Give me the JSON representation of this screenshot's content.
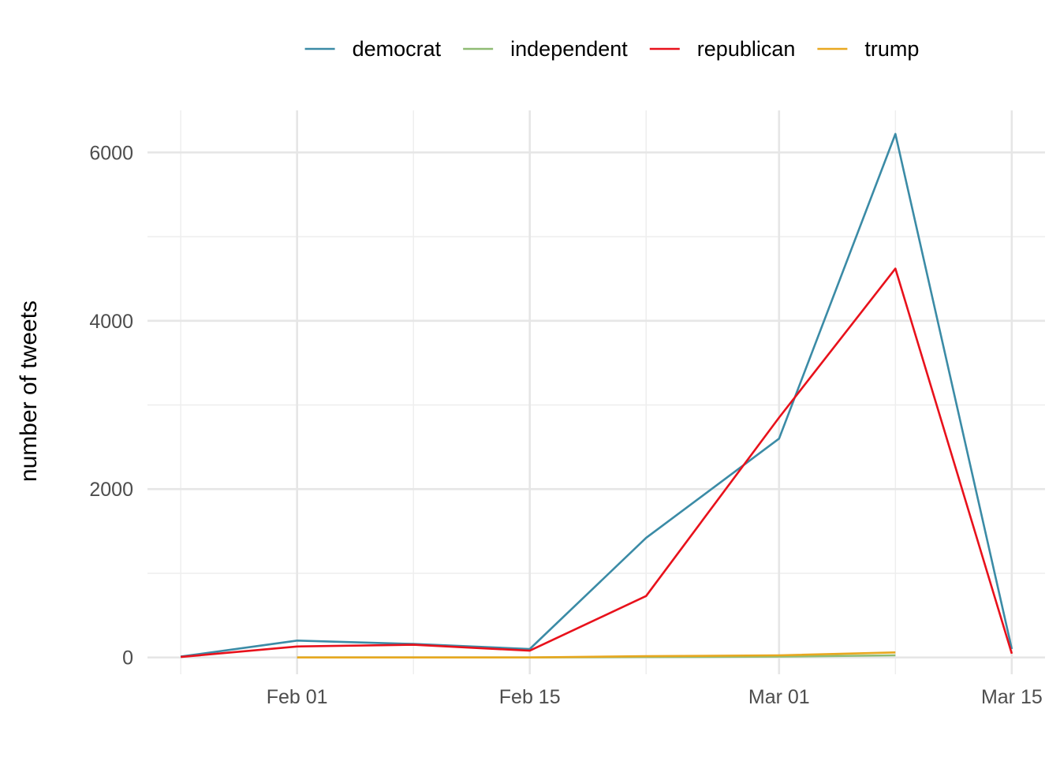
{
  "chart_data": {
    "type": "line",
    "title": "",
    "xlabel": "",
    "ylabel": "number of tweets",
    "x_type": "date",
    "xlim": [
      "2020-01-23",
      "2020-03-17"
    ],
    "ylim": [
      -200,
      6500
    ],
    "x_major_ticks": [
      {
        "date": "2020-02-01",
        "label": "Feb 01"
      },
      {
        "date": "2020-02-15",
        "label": "Feb 15"
      },
      {
        "date": "2020-03-01",
        "label": "Mar 01"
      },
      {
        "date": "2020-03-15",
        "label": "Mar 15"
      }
    ],
    "x_minor_ticks": [
      "2020-01-25",
      "2020-02-08",
      "2020-02-22",
      "2020-03-08"
    ],
    "y_major_ticks": [
      0,
      2000,
      4000,
      6000
    ],
    "y_minor_ticks": [
      1000,
      3000,
      5000
    ],
    "grid": true,
    "legend": {
      "position": "top",
      "direction": "horizontal"
    },
    "series": [
      {
        "name": "democrat",
        "color": "#3B8BA6",
        "points": [
          [
            "2020-01-25",
            10
          ],
          [
            "2020-02-01",
            200
          ],
          [
            "2020-02-08",
            160
          ],
          [
            "2020-02-15",
            100
          ],
          [
            "2020-02-22",
            1420
          ],
          [
            "2020-03-01",
            2600
          ],
          [
            "2020-03-08",
            6220
          ],
          [
            "2020-03-15",
            100
          ]
        ]
      },
      {
        "name": "independent",
        "color": "#8FBC74",
        "points": [
          [
            "2020-02-01",
            0
          ],
          [
            "2020-02-08",
            0
          ],
          [
            "2020-02-15",
            0
          ],
          [
            "2020-02-22",
            5
          ],
          [
            "2020-03-01",
            10
          ],
          [
            "2020-03-08",
            25
          ]
        ]
      },
      {
        "name": "republican",
        "color": "#E8111B",
        "points": [
          [
            "2020-01-25",
            5
          ],
          [
            "2020-02-01",
            130
          ],
          [
            "2020-02-08",
            150
          ],
          [
            "2020-02-15",
            80
          ],
          [
            "2020-02-22",
            730
          ],
          [
            "2020-03-01",
            2850
          ],
          [
            "2020-03-08",
            4620
          ],
          [
            "2020-03-15",
            45
          ]
        ]
      },
      {
        "name": "trump",
        "color": "#E8A820",
        "points": [
          [
            "2020-02-01",
            0
          ],
          [
            "2020-02-08",
            0
          ],
          [
            "2020-02-15",
            0
          ],
          [
            "2020-02-22",
            15
          ],
          [
            "2020-03-01",
            25
          ],
          [
            "2020-03-08",
            60
          ]
        ]
      }
    ]
  }
}
